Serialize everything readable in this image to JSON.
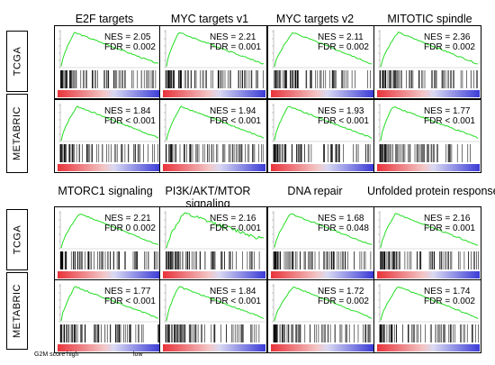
{
  "footer": {
    "left": "G2M score high",
    "right": "low"
  },
  "row_labels": [
    "TCGA",
    "METABRIC",
    "TCGA",
    "METABRIC"
  ],
  "colors": {
    "curve": "#22dd22",
    "high": "#e8333a",
    "low": "#3b3bd6",
    "axis": "#000000"
  },
  "chart_data": [
    {
      "type": "line",
      "title": "E2F targets",
      "cohort": "TCGA",
      "nes": "NES = 2.05",
      "fdr": "FDR = 0.002"
    },
    {
      "type": "line",
      "title": "MYC targets v1",
      "cohort": "TCGA",
      "nes": "NES = 2.21",
      "fdr": "FDR = 0.001"
    },
    {
      "type": "line",
      "title": "MYC targets v2",
      "cohort": "TCGA",
      "nes": "NES = 2.11",
      "fdr": "FDR = 0.002"
    },
    {
      "type": "line",
      "title": "MITOTIC spindle",
      "cohort": "TCGA",
      "nes": "NES = 2.36",
      "fdr": "FDR = 0.002"
    },
    {
      "type": "line",
      "title": "E2F targets",
      "cohort": "METABRIC",
      "nes": "NES = 1.84",
      "fdr": "FDR < 0.001"
    },
    {
      "type": "line",
      "title": "MYC targets v1",
      "cohort": "METABRIC",
      "nes": "NES = 1.94",
      "fdr": "FDR < 0.001"
    },
    {
      "type": "line",
      "title": "MYC targets v2",
      "cohort": "METABRIC",
      "nes": "NES = 1.93",
      "fdr": "FDR < 0.001"
    },
    {
      "type": "line",
      "title": "MITOTIC spindle",
      "cohort": "METABRIC",
      "nes": "NES = 1.77",
      "fdr": "FDR < 0.001"
    },
    {
      "type": "line",
      "title": "MTORC1 signaling",
      "cohort": "TCGA",
      "nes": "NES = 2.21",
      "fdr": "FDR 0 0.002"
    },
    {
      "type": "line",
      "title": "PI3K/AKT/MTOR signaling",
      "cohort": "TCGA",
      "nes": "NES = 2.16",
      "fdr": "FDR = 0.001"
    },
    {
      "type": "line",
      "title": "DNA repair",
      "cohort": "TCGA",
      "nes": "NES = 1.68",
      "fdr": "FDR = 0.048"
    },
    {
      "type": "line",
      "title": "Unfolded protein response",
      "cohort": "TCGA",
      "nes": "NES = 2.16",
      "fdr": "FDR = 0.001"
    },
    {
      "type": "line",
      "title": "MTORC1 signaling",
      "cohort": "METABRIC",
      "nes": "NES = 1.77",
      "fdr": "FDR < 0.001"
    },
    {
      "type": "line",
      "title": "PI3K/AKT/MTOR signaling",
      "cohort": "METABRIC",
      "nes": "NES = 1.84",
      "fdr": "FDR < 0.001"
    },
    {
      "type": "line",
      "title": "DNA repair",
      "cohort": "METABRIC",
      "nes": "NES = 1.72",
      "fdr": "FDR = 0.002"
    },
    {
      "type": "line",
      "title": "Unfolded protein response",
      "cohort": "METABRIC",
      "nes": "NES = 1.74",
      "fdr": "FDR = 0.002"
    }
  ],
  "column_titles": [
    "E2F targets",
    "MYC targets v1",
    "MYC targets v2",
    "MITOTIC spindle",
    "MTORC1 signaling",
    "PI3K/AKT/MTOR signaling",
    "DNA repair",
    "Unfolded protein response"
  ]
}
